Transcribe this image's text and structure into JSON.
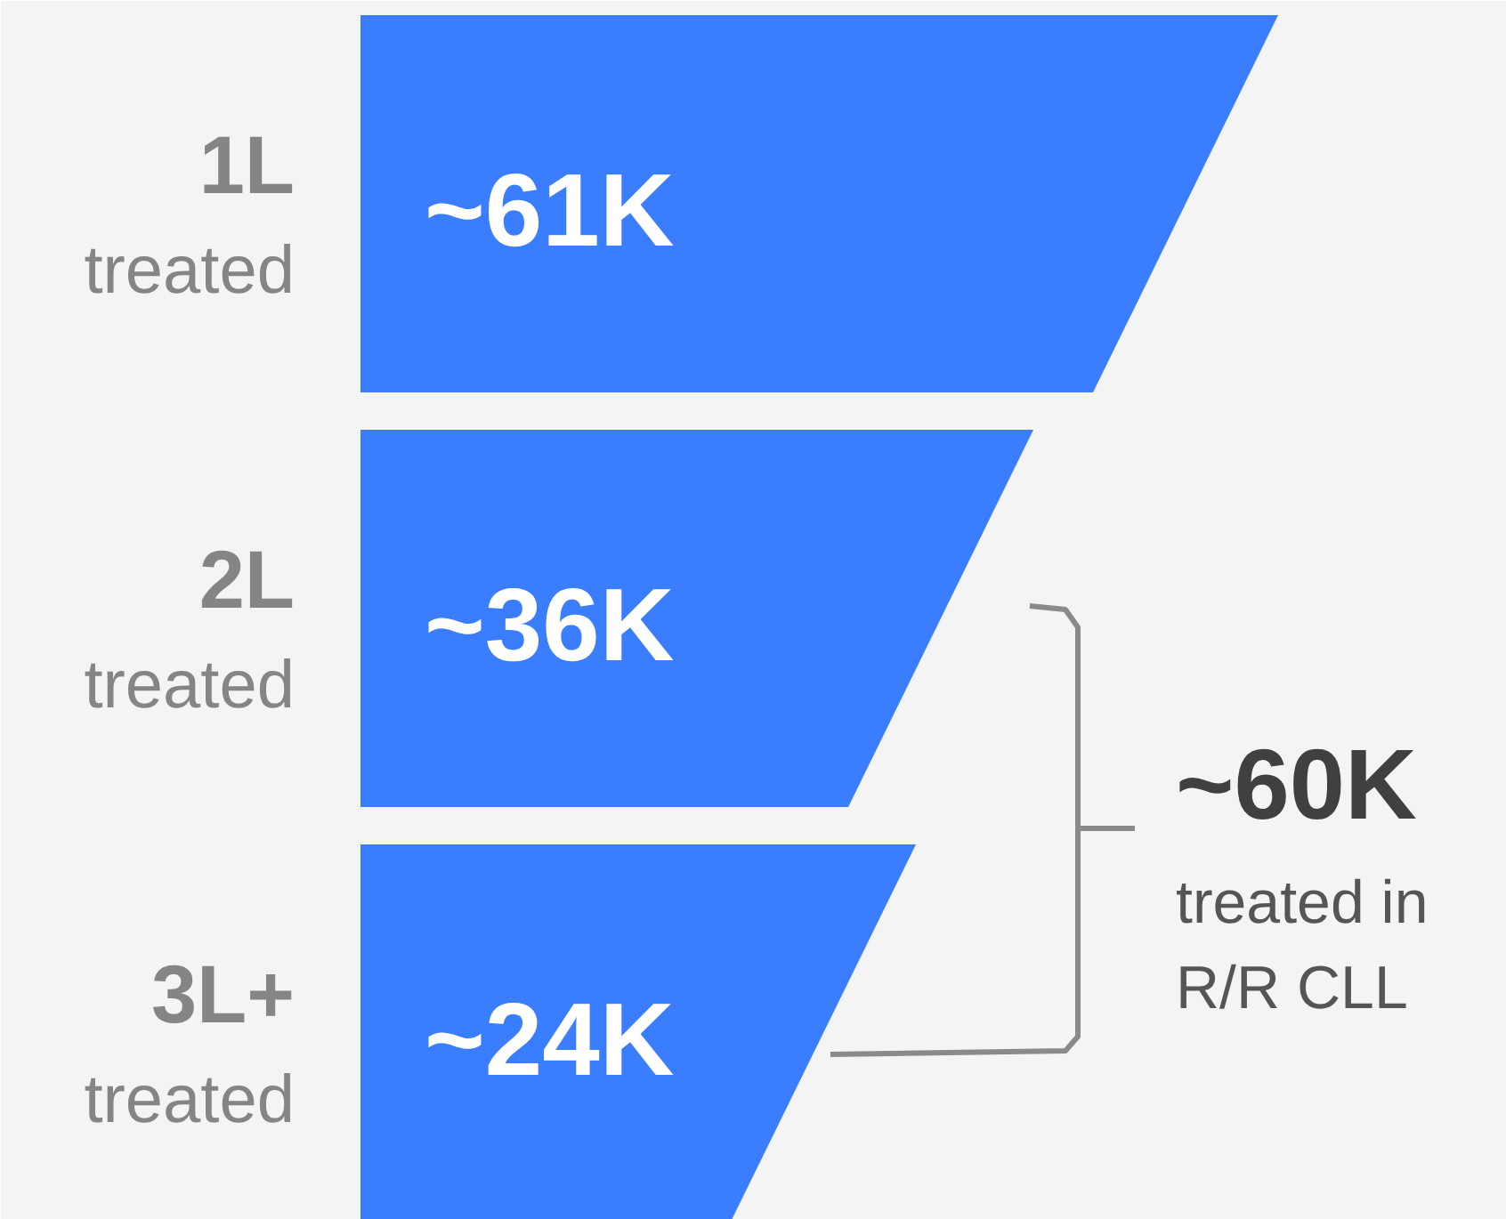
{
  "chart_data": {
    "type": "other",
    "categories": [
      "1L treated",
      "2L treated",
      "3L+ treated"
    ],
    "values": [
      61000,
      36000,
      24000
    ],
    "value_labels": [
      "~61K",
      "~36K",
      "~24K"
    ],
    "color": "#3a7eff",
    "annotations": [
      "~60K",
      "treated in R/R CLL"
    ]
  }
}
